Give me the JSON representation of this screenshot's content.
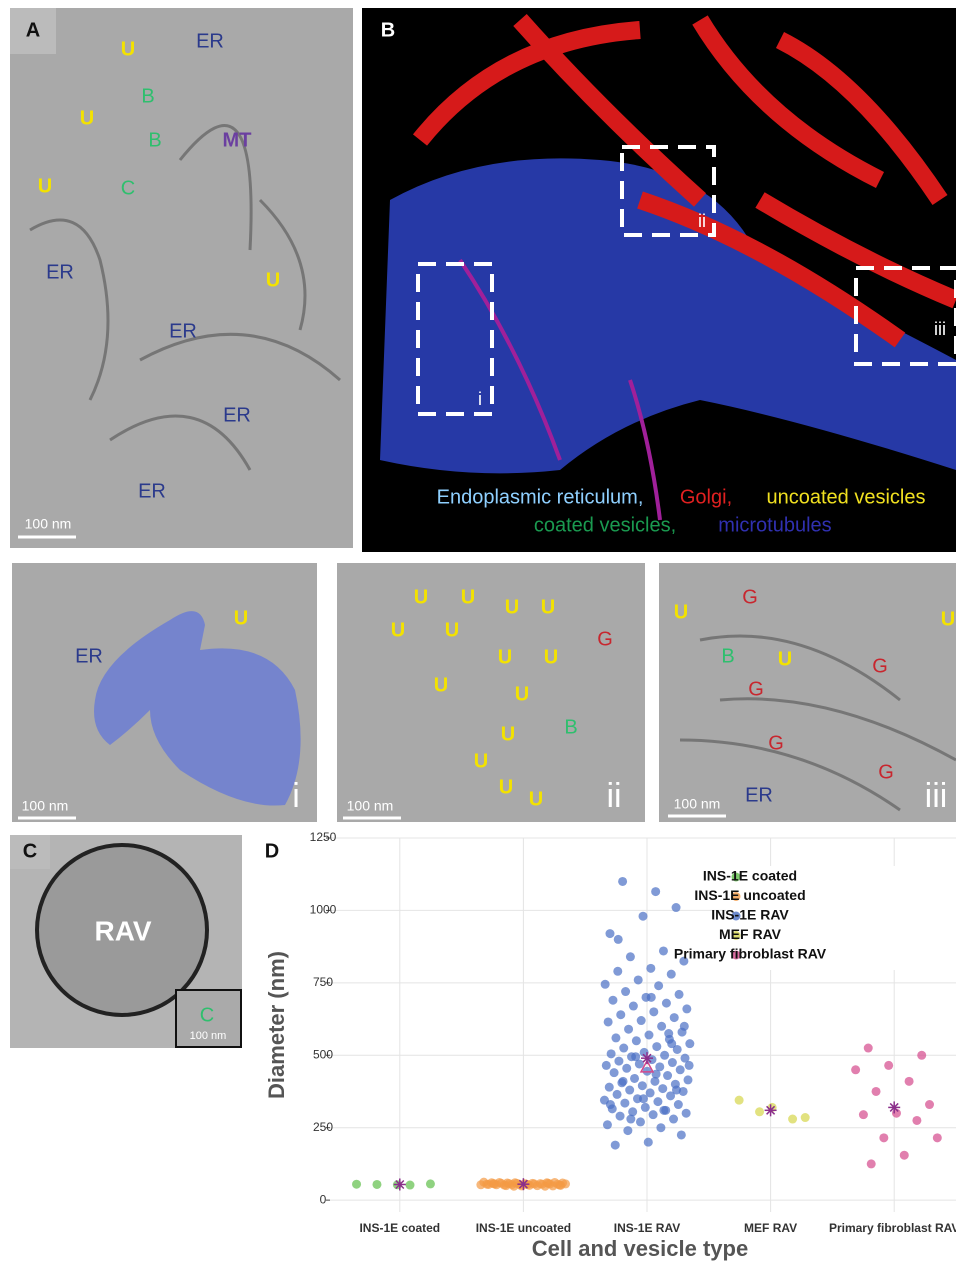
{
  "panels": {
    "A": {
      "letter": "A",
      "labels": [
        "U",
        "ER",
        "B",
        "U",
        "B",
        "MT",
        "U",
        "C",
        "ER",
        "U",
        "ER",
        "ER",
        "ER"
      ],
      "scale": "100 nm"
    },
    "B": {
      "letter": "B",
      "boxes": [
        "i",
        "ii",
        "iii"
      ],
      "legend": [
        "Endoplasmic reticulum,",
        "Golgi,",
        "uncoated vesicles",
        "coated vesicles,",
        "microtubules"
      ]
    },
    "i": {
      "labels": [
        "ER",
        "U"
      ],
      "scale": "100 nm",
      "numeral": "i"
    },
    "ii": {
      "labels": [
        "U",
        "U",
        "U",
        "U",
        "U",
        "U",
        "U",
        "U",
        "U",
        "U",
        "U",
        "U",
        "U",
        "U",
        "G",
        "B"
      ],
      "scale": "100 nm",
      "numeral": "ii"
    },
    "iii": {
      "labels": [
        "U",
        "G",
        "B",
        "U",
        "G",
        "G",
        "G",
        "ER",
        "G",
        "U"
      ],
      "scale": "100 nm",
      "numeral": "iii"
    },
    "C": {
      "letter": "C",
      "labels": [
        "RAV",
        "C"
      ],
      "scale": "100 nm"
    }
  },
  "chart_data": {
    "type": "strip",
    "panel": "D",
    "xlabel": "Cell and vesicle type",
    "ylabel": "Diameter (nm)",
    "categories": [
      "INS-1E coated",
      "INS-1E uncoated",
      "INS-1E RAV",
      "MEF RAV",
      "Primary fibroblast RAV"
    ],
    "ylim": [
      -41,
      1250
    ],
    "yticks": [
      0,
      250,
      500,
      750,
      1000,
      1250
    ],
    "grid": true,
    "legend": "top-right",
    "series": [
      {
        "name": "INS-1E coated",
        "color": "#5fbf4a",
        "mean": 54,
        "values": [
          55,
          52,
          54,
          56,
          53
        ]
      },
      {
        "name": "INS-1E uncoated",
        "color": "#f49a45",
        "mean": 55,
        "values": [
          50,
          52,
          55,
          57,
          60,
          48,
          53,
          56,
          58,
          61,
          49,
          54,
          55,
          57,
          59,
          51,
          53,
          56,
          58,
          62,
          50,
          52,
          55,
          57,
          60,
          48,
          54,
          56,
          58,
          61,
          49,
          53,
          55,
          57,
          59,
          51,
          54,
          56,
          58,
          60
        ]
      },
      {
        "name": "INS-1E RAV",
        "color": "#4a6fc4",
        "mean": 490,
        "median": 460,
        "values": [
          1065,
          1100,
          1010,
          980,
          920,
          860,
          840,
          825,
          800,
          790,
          780,
          760,
          745,
          740,
          720,
          710,
          700,
          690,
          680,
          670,
          660,
          650,
          640,
          630,
          620,
          615,
          600,
          590,
          580,
          570,
          560,
          555,
          550,
          540,
          530,
          525,
          520,
          510,
          505,
          500,
          495,
          490,
          485,
          480,
          475,
          470,
          465,
          460,
          455,
          450,
          445,
          440,
          430,
          420,
          415,
          410,
          405,
          400,
          395,
          390,
          385,
          380,
          375,
          370,
          365,
          360,
          350,
          345,
          340,
          335,
          330,
          320,
          315,
          310,
          305,
          300,
          295,
          290,
          280,
          270,
          260,
          250,
          240,
          225,
          200,
          190,
          575,
          495,
          465,
          435,
          410,
          380,
          350,
          330,
          310,
          280,
          600,
          700,
          900,
          540
        ]
      },
      {
        "name": "MEF RAV",
        "color": "#d6d64a",
        "mean": 310,
        "values": [
          285,
          320,
          345,
          280,
          305
        ]
      },
      {
        "name": "Primary fibroblast RAV",
        "color": "#d4488c",
        "mean": 320,
        "values": [
          525,
          500,
          465,
          450,
          410,
          375,
          330,
          300,
          295,
          275,
          215,
          215,
          155,
          125
        ]
      }
    ]
  }
}
